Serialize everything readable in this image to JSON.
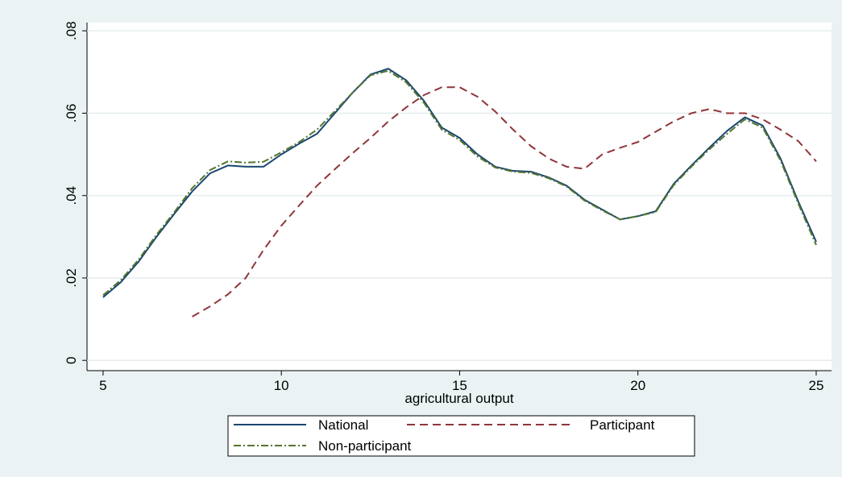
{
  "chart_data": {
    "type": "line",
    "x_label": "agricultural output",
    "x": [
      5,
      5.5,
      6,
      6.5,
      7,
      7.5,
      8,
      8.5,
      9,
      9.5,
      10,
      10.5,
      11,
      11.5,
      12,
      12.5,
      13,
      13.5,
      14,
      14.5,
      15,
      15.5,
      16,
      16.5,
      17,
      17.5,
      18,
      18.5,
      19,
      19.5,
      20,
      20.5,
      21,
      21.5,
      22,
      22.5,
      23,
      23.5,
      24,
      24.5,
      25
    ],
    "series": [
      {
        "name": "National",
        "color": "#1a476f",
        "dash": "none",
        "values": [
          0.0153,
          0.019,
          0.024,
          0.03,
          0.0356,
          0.041,
          0.0454,
          0.0473,
          0.047,
          0.047,
          0.05,
          0.0526,
          0.055,
          0.06,
          0.065,
          0.0694,
          0.0708,
          0.068,
          0.063,
          0.0565,
          0.054,
          0.05,
          0.047,
          0.046,
          0.0458,
          0.0444,
          0.0424,
          0.039,
          0.0366,
          0.0342,
          0.035,
          0.0362,
          0.0428,
          0.0473,
          0.0516,
          0.0557,
          0.059,
          0.057,
          0.049,
          0.0385,
          0.0288
        ]
      },
      {
        "name": "Participant",
        "color": "#90353b",
        "dash": "10,6",
        "values": [
          null,
          null,
          null,
          null,
          null,
          0.0106,
          0.0131,
          0.016,
          0.02,
          0.0268,
          0.0327,
          0.0376,
          0.0424,
          0.0464,
          0.0503,
          0.054,
          0.058,
          0.0614,
          0.0644,
          0.0663,
          0.0663,
          0.064,
          0.0604,
          0.056,
          0.052,
          0.049,
          0.047,
          0.0465,
          0.05,
          0.0516,
          0.053,
          0.0555,
          0.058,
          0.06,
          0.061,
          0.06,
          0.06,
          0.0585,
          0.056,
          0.0532,
          0.0483
        ]
      },
      {
        "name": "Non-participant",
        "color": "#55752f",
        "dash": "9,3,2,3",
        "values": [
          0.0158,
          0.0195,
          0.0245,
          0.0305,
          0.036,
          0.0418,
          0.0462,
          0.0483,
          0.048,
          0.0482,
          0.0505,
          0.053,
          0.056,
          0.0605,
          0.065,
          0.0692,
          0.0703,
          0.0675,
          0.0625,
          0.056,
          0.0535,
          0.0495,
          0.0468,
          0.0458,
          0.0455,
          0.0442,
          0.0422,
          0.0388,
          0.0364,
          0.0342,
          0.035,
          0.036,
          0.0425,
          0.047,
          0.0512,
          0.055,
          0.0585,
          0.0565,
          0.0485,
          0.038,
          0.028
        ]
      }
    ],
    "xlim": [
      4.55,
      25.43
    ],
    "xticks": [
      5,
      10,
      15,
      20,
      25
    ],
    "ylim": [
      -0.0025,
      0.082
    ],
    "yticks": [
      0,
      {
        "value": 0.02,
        "label": ".02"
      },
      {
        "value": 0.04,
        "label": ".04"
      },
      {
        "value": 0.06,
        "label": ".06"
      },
      {
        "value": 0.08,
        "label": ".08"
      }
    ],
    "grid": true
  }
}
